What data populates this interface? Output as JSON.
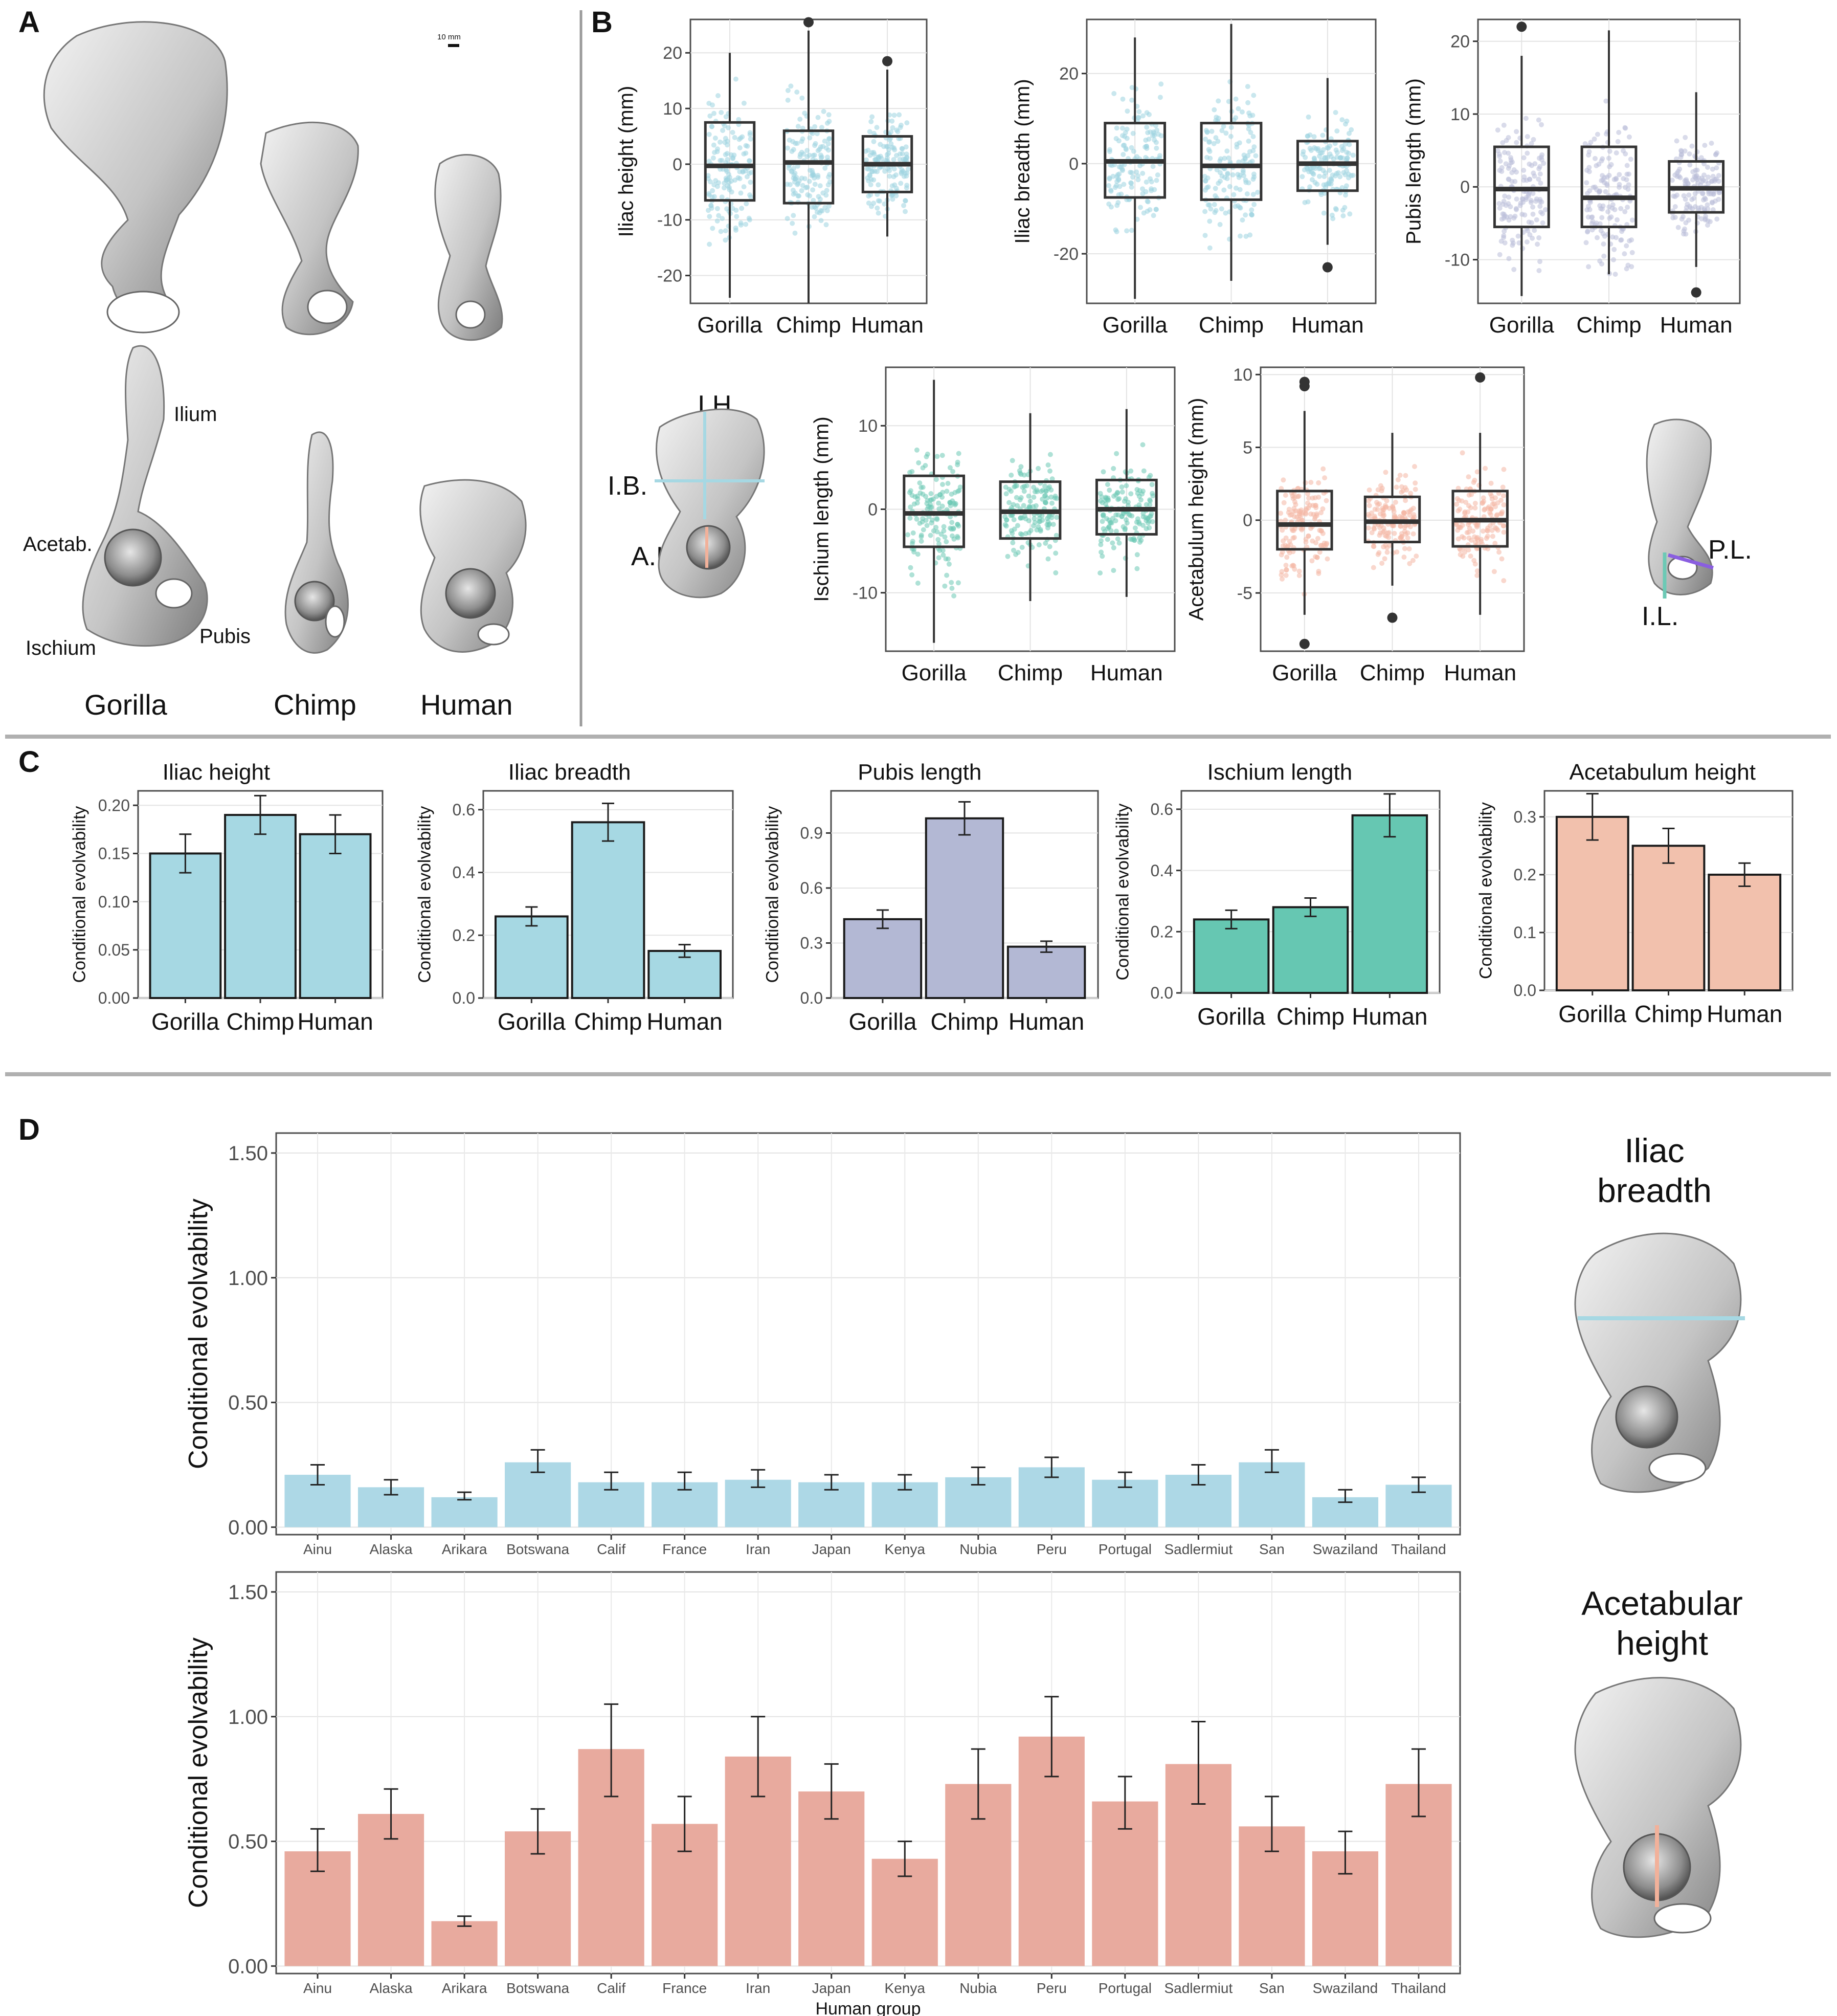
{
  "panels": {
    "A": {
      "letter": "A",
      "scale": "10 mm",
      "bone_labels": {
        "ilium": "Ilium",
        "acetab": "Acetab.",
        "ischium": "Ischium",
        "pubis": "Pubis"
      },
      "species": [
        "Gorilla",
        "Chimp",
        "Human"
      ]
    },
    "B": {
      "letter": "B",
      "schematic_left": {
        "ih": "I.H.",
        "ib": "I.B.",
        "ah": "A.H."
      },
      "schematic_right": {
        "pl": "P.L.",
        "il": "I.L."
      }
    },
    "C": {
      "letter": "C"
    },
    "D": {
      "letter": "D",
      "side_titles": {
        "breadth_1": "Iliac",
        "breadth_2": "breadth",
        "acet_1": "Acetabular",
        "acet_2": "height"
      }
    }
  },
  "colors": {
    "blue": "#a6d8e3",
    "slate": "#b3b8d4",
    "teal": "#66c7b2",
    "salmon": "#f2c1ad",
    "d_blue": "#add8e6",
    "d_salmon": "#e8aa9e",
    "box_blue_pts": "#9dd3e0",
    "box_slate_pts": "#b9bed8",
    "box_teal_pts": "#6cc9b5",
    "box_salmon_pts": "#f4b6a4"
  },
  "chart_data": [
    {
      "id": "B1",
      "type": "box",
      "ylabel": "Iliac height (mm)",
      "categories": [
        "Gorilla",
        "Chimp",
        "Human"
      ],
      "ylim": [
        -25,
        26
      ],
      "yticks": [
        -20,
        -10,
        0,
        10,
        20
      ],
      "boxes": [
        {
          "min": -24,
          "q1": -6.5,
          "median": -0.3,
          "q3": 7.5,
          "max": 20,
          "outliers": []
        },
        {
          "min": -25,
          "q1": -7,
          "median": 0.3,
          "q3": 6,
          "max": 24,
          "outliers": [
            25.5
          ]
        },
        {
          "min": -13,
          "q1": -5,
          "median": 0,
          "q3": 5,
          "max": 17,
          "outliers": [
            18.5
          ]
        }
      ]
    },
    {
      "id": "B2",
      "type": "box",
      "ylabel": "Iliac breadth (mm)",
      "categories": [
        "Gorilla",
        "Chimp",
        "Human"
      ],
      "ylim": [
        -31,
        32
      ],
      "yticks": [
        -20,
        0,
        20
      ],
      "boxes": [
        {
          "min": -30,
          "q1": -7.5,
          "median": 0.5,
          "q3": 9,
          "max": 28,
          "outliers": []
        },
        {
          "min": -26,
          "q1": -8,
          "median": -0.5,
          "q3": 9,
          "max": 31,
          "outliers": []
        },
        {
          "min": -18,
          "q1": -6,
          "median": 0,
          "q3": 5,
          "max": 19,
          "outliers": [
            -23
          ]
        }
      ]
    },
    {
      "id": "B3",
      "type": "box",
      "ylabel": "Pubis length (mm)",
      "categories": [
        "Gorilla",
        "Chimp",
        "Human"
      ],
      "ylim": [
        -16,
        23
      ],
      "yticks": [
        -10,
        0,
        10,
        20
      ],
      "boxes": [
        {
          "min": -15,
          "q1": -5.5,
          "median": -0.3,
          "q3": 5.5,
          "max": 18,
          "outliers": [
            22
          ]
        },
        {
          "min": -12,
          "q1": -5.5,
          "median": -1.5,
          "q3": 5.5,
          "max": 21.5,
          "outliers": []
        },
        {
          "min": -11,
          "q1": -3.5,
          "median": -0.2,
          "q3": 3.5,
          "max": 13,
          "outliers": [
            -14.5
          ]
        }
      ]
    },
    {
      "id": "B4",
      "type": "box",
      "ylabel": "Ischium length (mm)",
      "categories": [
        "Gorilla",
        "Chimp",
        "Human"
      ],
      "ylim": [
        -17,
        17
      ],
      "yticks": [
        -10,
        0,
        10
      ],
      "boxes": [
        {
          "min": -16,
          "q1": -4.5,
          "median": -0.5,
          "q3": 4,
          "max": 15.5,
          "outliers": []
        },
        {
          "min": -11,
          "q1": -3.5,
          "median": -0.3,
          "q3": 3.3,
          "max": 11.5,
          "outliers": []
        },
        {
          "min": -10.5,
          "q1": -3,
          "median": 0,
          "q3": 3.5,
          "max": 12,
          "outliers": []
        }
      ]
    },
    {
      "id": "B5",
      "type": "box",
      "ylabel": "Acetabulum height (mm)",
      "categories": [
        "Gorilla",
        "Chimp",
        "Human"
      ],
      "ylim": [
        -9,
        10.5
      ],
      "yticks": [
        -5,
        0,
        5,
        10
      ],
      "boxes": [
        {
          "min": -6.5,
          "q1": -2,
          "median": -0.3,
          "q3": 2,
          "max": 7.5,
          "outliers": [
            9.5,
            9.2,
            -8.5
          ]
        },
        {
          "min": -4.5,
          "q1": -1.5,
          "median": -0.1,
          "q3": 1.6,
          "max": 6,
          "outliers": [
            -6.7
          ]
        },
        {
          "min": -6.5,
          "q1": -1.8,
          "median": 0,
          "q3": 2,
          "max": 6,
          "outliers": [
            9.8
          ]
        }
      ]
    },
    {
      "id": "C1",
      "type": "bar",
      "title": "Iliac height",
      "ylabel": "Conditional evolvability",
      "categories": [
        "Gorilla",
        "Chimp",
        "Human"
      ],
      "values": [
        0.15,
        0.19,
        0.17
      ],
      "err_low": [
        0.13,
        0.17,
        0.15
      ],
      "err_high": [
        0.17,
        0.21,
        0.19
      ],
      "ylim": [
        0,
        0.215
      ],
      "yticks": [
        "0.00",
        "0.05",
        "0.10",
        "0.15",
        "0.20"
      ]
    },
    {
      "id": "C2",
      "type": "bar",
      "title": "Iliac breadth",
      "ylabel": "Conditional evolvability",
      "categories": [
        "Gorilla",
        "Chimp",
        "Human"
      ],
      "values": [
        0.26,
        0.56,
        0.15
      ],
      "err_low": [
        0.23,
        0.5,
        0.13
      ],
      "err_high": [
        0.29,
        0.62,
        0.17
      ],
      "ylim": [
        0,
        0.66
      ],
      "yticks": [
        "0.0",
        "0.2",
        "0.4",
        "0.6"
      ]
    },
    {
      "id": "C3",
      "type": "bar",
      "title": "Pubis length",
      "ylabel": "Conditional evolvability",
      "categories": [
        "Gorilla",
        "Chimp",
        "Human"
      ],
      "values": [
        0.43,
        0.98,
        0.28
      ],
      "err_low": [
        0.38,
        0.89,
        0.25
      ],
      "err_high": [
        0.48,
        1.07,
        0.31
      ],
      "ylim": [
        0,
        1.13
      ],
      "yticks": [
        "0.0",
        "0.3",
        "0.6",
        "0.9"
      ]
    },
    {
      "id": "C4",
      "type": "bar",
      "title": "Ischium length",
      "ylabel": "Conditional evolvability",
      "categories": [
        "Gorilla",
        "Chimp",
        "Human"
      ],
      "values": [
        0.24,
        0.28,
        0.58
      ],
      "err_low": [
        0.21,
        0.25,
        0.51
      ],
      "err_high": [
        0.27,
        0.31,
        0.65
      ],
      "ylim": [
        0,
        0.66
      ],
      "yticks": [
        "0.0",
        "0.2",
        "0.4",
        "0.6"
      ]
    },
    {
      "id": "C5",
      "type": "bar",
      "title": "Acetabulum height",
      "ylabel": "Conditional evolvability",
      "categories": [
        "Gorilla",
        "Chimp",
        "Human"
      ],
      "values": [
        0.3,
        0.25,
        0.2
      ],
      "err_low": [
        0.26,
        0.22,
        0.18
      ],
      "err_high": [
        0.34,
        0.28,
        0.22
      ],
      "ylim": [
        0,
        0.345
      ],
      "yticks": [
        "0.0",
        "0.1",
        "0.2",
        "0.3"
      ]
    },
    {
      "id": "D1",
      "type": "bar",
      "ylabel": "Conditional evolvability",
      "categories": [
        "Ainu",
        "Alaska",
        "Arikara",
        "Botswana",
        "Calif",
        "France",
        "Iran",
        "Japan",
        "Kenya",
        "Nubia",
        "Peru",
        "Portugal",
        "Sadlermiut",
        "San",
        "Swaziland",
        "Thailand"
      ],
      "values": [
        0.21,
        0.16,
        0.12,
        0.26,
        0.18,
        0.18,
        0.19,
        0.18,
        0.18,
        0.2,
        0.24,
        0.19,
        0.21,
        0.26,
        0.12,
        0.17
      ],
      "err_low": [
        0.17,
        0.13,
        0.11,
        0.22,
        0.15,
        0.15,
        0.16,
        0.15,
        0.15,
        0.17,
        0.2,
        0.16,
        0.17,
        0.22,
        0.1,
        0.14
      ],
      "err_high": [
        0.25,
        0.19,
        0.14,
        0.31,
        0.22,
        0.22,
        0.23,
        0.21,
        0.21,
        0.24,
        0.28,
        0.22,
        0.25,
        0.31,
        0.15,
        0.2
      ],
      "ylim": [
        -0.03,
        1.58
      ],
      "yticks": [
        "0.00",
        "0.50",
        "1.00",
        "1.50"
      ]
    },
    {
      "id": "D2",
      "type": "bar",
      "ylabel": "Conditional evolvability",
      "xlabel": "Human group",
      "categories": [
        "Ainu",
        "Alaska",
        "Arikara",
        "Botswana",
        "Calif",
        "France",
        "Iran",
        "Japan",
        "Kenya",
        "Nubia",
        "Peru",
        "Portugal",
        "Sadlermiut",
        "San",
        "Swaziland",
        "Thailand"
      ],
      "values": [
        0.46,
        0.61,
        0.18,
        0.54,
        0.87,
        0.57,
        0.84,
        0.7,
        0.43,
        0.73,
        0.92,
        0.66,
        0.81,
        0.56,
        0.46,
        0.73
      ],
      "err_low": [
        0.38,
        0.51,
        0.16,
        0.45,
        0.68,
        0.46,
        0.68,
        0.59,
        0.36,
        0.59,
        0.76,
        0.55,
        0.65,
        0.46,
        0.37,
        0.6
      ],
      "err_high": [
        0.55,
        0.71,
        0.2,
        0.63,
        1.05,
        0.68,
        1.0,
        0.81,
        0.5,
        0.87,
        1.08,
        0.76,
        0.98,
        0.68,
        0.54,
        0.87
      ],
      "ylim": [
        -0.03,
        1.58
      ],
      "yticks": [
        "0.00",
        "0.50",
        "1.00",
        "1.50"
      ]
    }
  ]
}
